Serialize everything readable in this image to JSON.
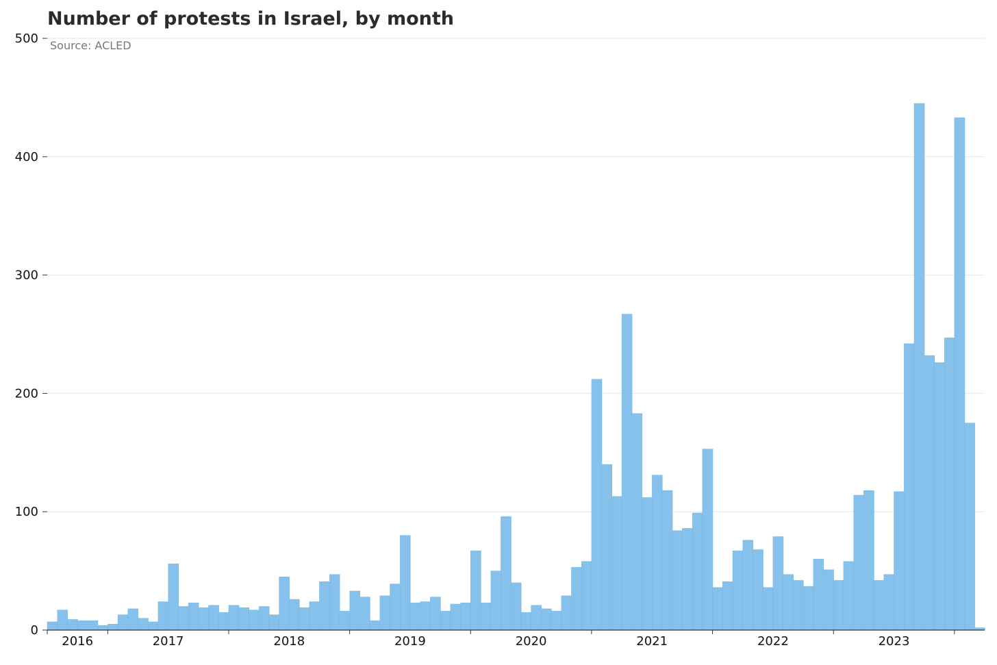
{
  "chart_data": {
    "type": "bar",
    "title": "Number of protests in Israel, by month",
    "subtitle": "Source: ACLED",
    "xlabel": "",
    "ylabel": "",
    "ylim": [
      0,
      500
    ],
    "yticks": [
      0,
      100,
      200,
      300,
      400,
      500
    ],
    "grid": "horizontal",
    "legend": "none",
    "color": "#85C1EB",
    "start_month": "2015-07",
    "x_tick_labels": [
      "2016",
      "2017",
      "2018",
      "2019",
      "2020",
      "2021",
      "2022",
      "2023"
    ],
    "values": [
      7,
      17,
      9,
      8,
      8,
      4,
      5,
      13,
      18,
      10,
      7,
      24,
      56,
      20,
      23,
      19,
      21,
      15,
      21,
      19,
      17,
      20,
      13,
      45,
      26,
      19,
      24,
      41,
      47,
      16,
      33,
      28,
      8,
      29,
      39,
      80,
      23,
      24,
      28,
      16,
      22,
      23,
      67,
      23,
      50,
      96,
      40,
      15,
      21,
      18,
      16,
      29,
      53,
      58,
      212,
      140,
      113,
      267,
      183,
      112,
      131,
      118,
      84,
      86,
      99,
      153,
      36,
      41,
      67,
      76,
      68,
      36,
      79,
      47,
      42,
      37,
      60,
      51,
      42,
      58,
      114,
      118,
      42,
      47,
      117,
      242,
      445,
      232,
      226,
      247,
      433,
      175,
      2
    ]
  }
}
